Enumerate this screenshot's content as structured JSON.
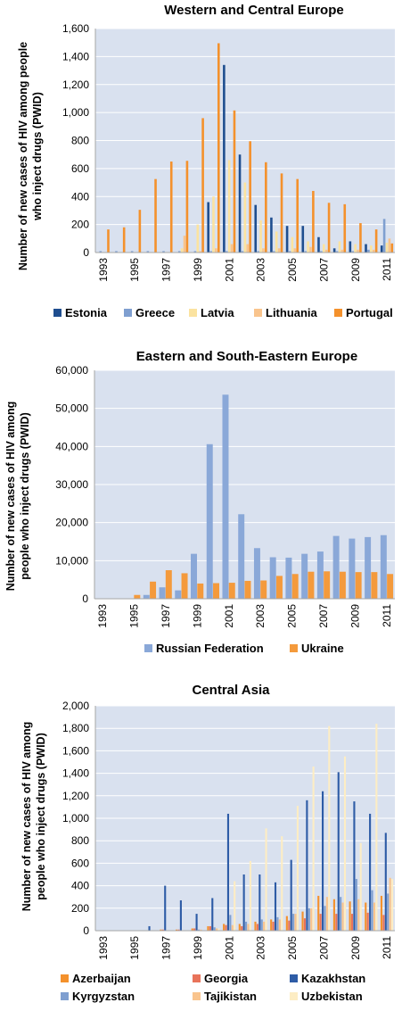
{
  "years": [
    "1993",
    "1994",
    "1995",
    "1996",
    "1997",
    "1998",
    "1999",
    "2000",
    "2001",
    "2002",
    "2003",
    "2004",
    "2005",
    "2006",
    "2007",
    "2008",
    "2009",
    "2010",
    "2011"
  ],
  "year_tick_labels": [
    "1993",
    "1995",
    "1997",
    "1999",
    "2001",
    "2003",
    "2005",
    "2007",
    "2009",
    "2011"
  ],
  "colors": {
    "Estonia": "#1f4e8f",
    "Greece": "#7f9fd0",
    "Latvia": "#fbe3a0",
    "Lithuania": "#f9c48d",
    "Portugal": "#f4912c",
    "Russian Federation": "#8aa8d8",
    "Ukraine": "#f49a3c",
    "Azerbaijan": "#f4912c",
    "Georgia": "#e8735a",
    "Kazakhstan": "#2e5ca6",
    "Kyrgyzstan": "#7f9fd0",
    "Tajikistan": "#f9c48d",
    "Uzbekistan": "#fdedc4"
  },
  "chart_data": [
    {
      "type": "bar",
      "title": "Western and Central Europe",
      "ylabel": "Number of new cases of HIV among people who inject drugs (PWID)",
      "ylabel_lines": [
        "Number of new cases of HIV among people",
        "who inject drugs (PWID)"
      ],
      "ylim": [
        0,
        1600
      ],
      "yticks": [
        0,
        200,
        400,
        600,
        800,
        1000,
        1200,
        1400,
        1600
      ],
      "ytick_labels": [
        "0",
        "200",
        "400",
        "600",
        "800",
        "1,000",
        "1,200",
        "1,400",
        "1,600"
      ],
      "legend_position": "bottom",
      "categories": [
        "1993",
        "1994",
        "1995",
        "1996",
        "1997",
        "1998",
        "1999",
        "2000",
        "2001",
        "2002",
        "2003",
        "2004",
        "2005",
        "2006",
        "2007",
        "2008",
        "2009",
        "2010",
        "2011"
      ],
      "series": [
        {
          "name": "Estonia",
          "values": [
            0,
            0,
            0,
            0,
            0,
            0,
            0,
            360,
            1340,
            700,
            340,
            250,
            190,
            190,
            110,
            30,
            80,
            60,
            50
          ]
        },
        {
          "name": "Greece",
          "values": [
            10,
            10,
            10,
            10,
            10,
            10,
            10,
            10,
            10,
            10,
            10,
            10,
            10,
            10,
            10,
            10,
            10,
            20,
            240
          ]
        },
        {
          "name": "Latvia",
          "values": [
            0,
            0,
            0,
            0,
            0,
            30,
            200,
            400,
            660,
            500,
            230,
            150,
            110,
            80,
            60,
            80,
            60,
            50,
            70
          ]
        },
        {
          "name": "Lithuania",
          "values": [
            0,
            0,
            0,
            0,
            0,
            120,
            10,
            30,
            60,
            60,
            30,
            30,
            30,
            40,
            20,
            20,
            20,
            20,
            100
          ]
        },
        {
          "name": "Portugal",
          "values": [
            165,
            180,
            305,
            525,
            650,
            655,
            960,
            1495,
            1015,
            795,
            645,
            565,
            525,
            440,
            355,
            345,
            210,
            165,
            65
          ]
        }
      ]
    },
    {
      "type": "bar",
      "title": "Eastern and South-Eastern Europe",
      "ylabel": "Number of new cases of HIV among people who inject drugs (PWID)",
      "ylabel_lines": [
        "Number of new cases of HIV among",
        "people who inject drugs (PWID)"
      ],
      "ylim": [
        0,
        60000
      ],
      "yticks": [
        0,
        10000,
        20000,
        30000,
        40000,
        50000,
        60000
      ],
      "ytick_labels": [
        "0",
        "10,000",
        "20,000",
        "30,000",
        "40,000",
        "50,000",
        "60,000"
      ],
      "legend_position": "bottom",
      "categories": [
        "1993",
        "1994",
        "1995",
        "1996",
        "1997",
        "1998",
        "1999",
        "2000",
        "2001",
        "2002",
        "2003",
        "2004",
        "2005",
        "2006",
        "2007",
        "2008",
        "2009",
        "2010",
        "2011"
      ],
      "series": [
        {
          "name": "Russian Federation",
          "values": [
            0,
            0,
            0,
            1000,
            3000,
            2200,
            11800,
            40600,
            53600,
            22200,
            13300,
            10900,
            10800,
            11800,
            12400,
            16500,
            15800,
            16200,
            16700
          ]
        },
        {
          "name": "Ukraine",
          "values": [
            0,
            0,
            1000,
            4500,
            7500,
            6700,
            4000,
            4100,
            4200,
            4700,
            4800,
            6000,
            6500,
            7100,
            7200,
            7100,
            7000,
            7000,
            6500
          ]
        }
      ]
    },
    {
      "type": "bar",
      "title": "Central Asia",
      "ylabel": "Number of new cases of HIV among people who inject drugs (PWID)",
      "ylabel_lines": [
        "Number of new cases of HIV among",
        "people who inject drugs (PWID)"
      ],
      "ylim": [
        0,
        2000
      ],
      "yticks": [
        0,
        200,
        400,
        600,
        800,
        1000,
        1200,
        1400,
        1600,
        1800,
        2000
      ],
      "ytick_labels": [
        "0",
        "200",
        "400",
        "600",
        "800",
        "1,000",
        "1,200",
        "1,400",
        "1,600",
        "1,800",
        "2,000"
      ],
      "legend_position": "bottom",
      "categories": [
        "1993",
        "1994",
        "1995",
        "1996",
        "1997",
        "1998",
        "1999",
        "2000",
        "2001",
        "2002",
        "2003",
        "2004",
        "2005",
        "2006",
        "2007",
        "2008",
        "2009",
        "2010",
        "2011"
      ],
      "series": [
        {
          "name": "Azerbaijan",
          "values": [
            0,
            0,
            0,
            0,
            10,
            10,
            20,
            40,
            60,
            60,
            80,
            100,
            130,
            170,
            310,
            280,
            260,
            250,
            310
          ]
        },
        {
          "name": "Georgia",
          "values": [
            0,
            0,
            0,
            0,
            10,
            10,
            20,
            40,
            50,
            40,
            60,
            80,
            90,
            110,
            150,
            150,
            150,
            160,
            140
          ]
        },
        {
          "name": "Kazakhstan",
          "values": [
            0,
            0,
            0,
            40,
            400,
            270,
            150,
            290,
            1040,
            500,
            500,
            430,
            630,
            1160,
            1240,
            1410,
            1150,
            1040,
            870
          ]
        },
        {
          "name": "Kyrgyzstan",
          "values": [
            0,
            0,
            0,
            0,
            0,
            0,
            10,
            30,
            140,
            80,
            100,
            120,
            150,
            200,
            220,
            300,
            460,
            360,
            330
          ]
        },
        {
          "name": "Tajikistan",
          "values": [
            0,
            0,
            0,
            0,
            0,
            0,
            10,
            20,
            50,
            60,
            80,
            100,
            150,
            200,
            300,
            250,
            280,
            250,
            470
          ]
        },
        {
          "name": "Uzbekistan",
          "values": [
            0,
            0,
            0,
            0,
            0,
            0,
            0,
            20,
            440,
            620,
            910,
            840,
            1110,
            1460,
            1820,
            1550,
            780,
            1840,
            460
          ]
        }
      ]
    }
  ]
}
